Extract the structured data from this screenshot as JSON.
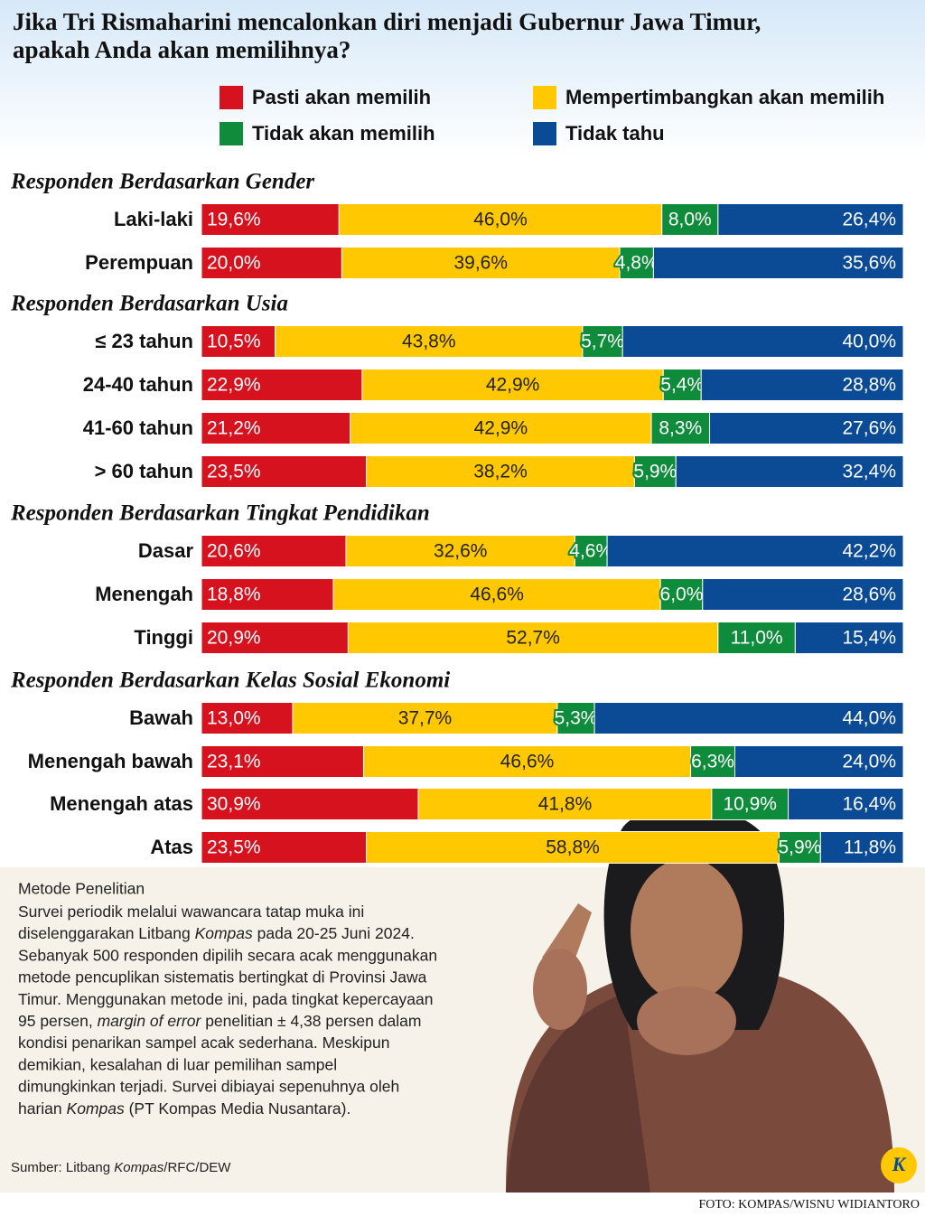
{
  "chart_data": {
    "type": "bar",
    "stacked": true,
    "orientation": "horizontal",
    "title": "Jika Tri Rismaharini mencalonkan diri menjadi Gubernur Jawa Timur, apakah Anda akan memilihnya?",
    "groups": [
      {
        "title": "Responden Berdasarkan Gender",
        "categories": [
          "Laki-laki",
          "Perempuan"
        ]
      },
      {
        "title": "Responden Berdasarkan Usia",
        "categories": [
          "≤ 23 tahun",
          "24-40 tahun",
          "41-60 tahun",
          "> 60 tahun"
        ]
      },
      {
        "title": "Responden Berdasarkan Tingkat Pendidikan",
        "categories": [
          "Dasar",
          "Menengah",
          "Tinggi"
        ]
      },
      {
        "title": "Responden Berdasarkan Kelas Sosial Ekonomi",
        "categories": [
          "Bawah",
          "Menengah bawah",
          "Menengah atas",
          "Atas"
        ]
      }
    ],
    "series": [
      {
        "name": "Pasti akan memilih",
        "color": "#d7121f",
        "values": [
          19.6,
          20.0,
          10.5,
          22.9,
          21.2,
          23.5,
          20.6,
          18.8,
          20.9,
          13.0,
          23.1,
          30.9,
          23.5
        ],
        "value_labels": [
          "19,6%",
          "20,0%",
          "10,5%",
          "22,9%",
          "21,2%",
          "23,5%",
          "20,6%",
          "18,8%",
          "20,9%",
          "13,0%",
          "23,1%",
          "30,9%",
          "23,5%"
        ]
      },
      {
        "name": "Mempertimbangkan akan memilih",
        "color": "#ffc800",
        "values": [
          46.0,
          39.6,
          43.8,
          42.9,
          42.9,
          38.2,
          32.6,
          46.6,
          52.7,
          37.7,
          46.6,
          41.8,
          58.8
        ],
        "value_labels": [
          "46,0%",
          "39,6%",
          "43,8%",
          "42,9%",
          "42,9%",
          "38,2%",
          "32,6%",
          "46,6%",
          "52,7%",
          "37,7%",
          "46,6%",
          "41,8%",
          "58,8%"
        ]
      },
      {
        "name": "Tidak akan memilih",
        "color": "#0f8c3b",
        "values": [
          8.0,
          4.8,
          5.7,
          5.4,
          8.3,
          5.9,
          4.6,
          6.0,
          11.0,
          5.3,
          6.3,
          10.9,
          5.9
        ],
        "value_labels": [
          "8,0%",
          "4,8%",
          "5,7%",
          "5,4%",
          "8,3%",
          "5,9%",
          "4,6%",
          "6,0%",
          "11,0%",
          "5,3%",
          "6,3%",
          "10,9%",
          "5,9%"
        ]
      },
      {
        "name": "Tidak tahu",
        "color": "#0b4a94",
        "values": [
          26.4,
          35.6,
          40.0,
          28.8,
          27.6,
          32.4,
          42.2,
          28.6,
          15.4,
          44.0,
          24.0,
          16.4,
          11.8
        ],
        "value_labels": [
          "26,4%",
          "35,6%",
          "40,0%",
          "28,8%",
          "27,6%",
          "32,4%",
          "42,2%",
          "28,6%",
          "15,4%",
          "44,0%",
          "24,0%",
          "16,4%",
          "11,8%"
        ]
      }
    ]
  },
  "method": {
    "heading": "Metode Penelitian",
    "lines": [
      [
        "Survei periodik melalui wawancara tatap muka ini"
      ],
      [
        "diselenggarakan Litbang ",
        "Kompas",
        " pada 20-25 Juni 2024."
      ],
      [
        "Sebanyak 500 responden dipilih secara acak menggunakan"
      ],
      [
        "metode pencuplikan sistematis bertingkat di Provinsi Jawa"
      ],
      [
        "Timur. Menggunakan metode ini, pada tingkat kepercayaan"
      ],
      [
        "95 persen, ",
        "margin of error",
        " penelitian ± 4,38 persen dalam"
      ],
      [
        "kondisi penarikan sampel acak sederhana. Meskipun"
      ],
      [
        "demikian, kesalahan di luar pemilihan sampel"
      ],
      [
        "dimungkinkan terjadi. Survei dibiayai sepenuhnya oleh"
      ],
      [
        "harian ",
        "Kompas",
        " (PT Kompas Media Nusantara)."
      ]
    ]
  },
  "source": [
    "Sumber: Litbang ",
    "Kompas",
    "/RFC/DEW"
  ],
  "photo_credit": "FOTO: KOMPAS/WISNU WIDIANTORO",
  "logo": "K"
}
